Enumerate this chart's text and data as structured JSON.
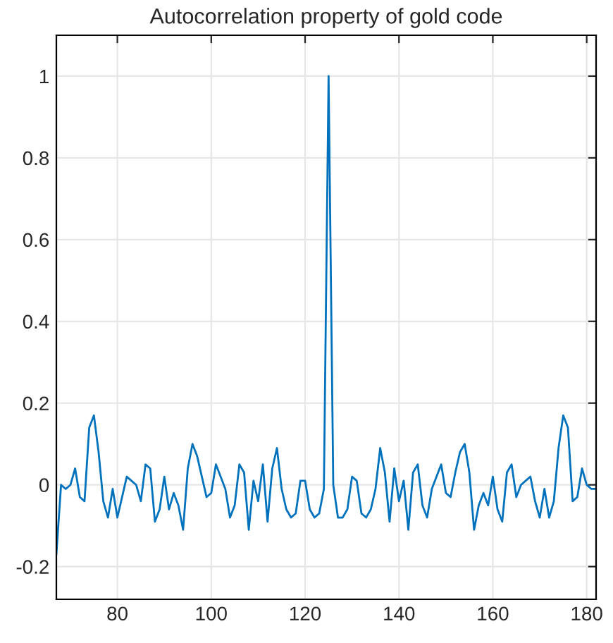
{
  "chart_data": {
    "type": "line",
    "title": "Autocorrelation property of gold code",
    "x": [
      67,
      68,
      69,
      70,
      71,
      72,
      73,
      74,
      75,
      76,
      77,
      78,
      79,
      80,
      81,
      82,
      83,
      84,
      85,
      86,
      87,
      88,
      89,
      90,
      91,
      92,
      93,
      94,
      95,
      96,
      97,
      98,
      99,
      100,
      101,
      102,
      103,
      104,
      105,
      106,
      107,
      108,
      109,
      110,
      111,
      112,
      113,
      114,
      115,
      116,
      117,
      118,
      119,
      120,
      121,
      122,
      123,
      124,
      125,
      126,
      127,
      128,
      129,
      130,
      131,
      132,
      133,
      134,
      135,
      136,
      137,
      138,
      139,
      140,
      141,
      142,
      143,
      144,
      145,
      146,
      147,
      148,
      149,
      150,
      151,
      152,
      153,
      154,
      155,
      156,
      157,
      158,
      159,
      160,
      161,
      162,
      163,
      164,
      165,
      166,
      167,
      168,
      169,
      170,
      171,
      172,
      173,
      174,
      175,
      176,
      177,
      178,
      179,
      180,
      181,
      182
    ],
    "series": [
      {
        "color": "#0072bd",
        "values": [
          -0.17,
          0.0,
          -0.01,
          0.0,
          0.04,
          -0.03,
          -0.04,
          0.14,
          0.17,
          0.08,
          -0.04,
          -0.08,
          -0.01,
          -0.08,
          -0.03,
          0.02,
          0.01,
          0.0,
          -0.04,
          0.05,
          0.04,
          -0.09,
          -0.06,
          0.02,
          -0.06,
          -0.02,
          -0.05,
          -0.11,
          0.04,
          0.1,
          0.07,
          0.02,
          -0.03,
          -0.02,
          0.05,
          0.02,
          -0.01,
          -0.08,
          -0.05,
          0.05,
          0.03,
          -0.11,
          0.01,
          -0.04,
          0.05,
          -0.09,
          0.04,
          0.09,
          -0.01,
          -0.06,
          -0.08,
          -0.07,
          0.01,
          0.01,
          -0.06,
          -0.08,
          -0.07,
          -0.01,
          1.0,
          0.0,
          -0.08,
          -0.08,
          -0.06,
          0.02,
          0.01,
          -0.07,
          -0.08,
          -0.06,
          -0.01,
          0.09,
          0.03,
          -0.09,
          0.04,
          -0.04,
          0.01,
          -0.11,
          0.03,
          0.05,
          -0.05,
          -0.08,
          -0.01,
          0.02,
          0.05,
          -0.02,
          -0.03,
          0.03,
          0.08,
          0.1,
          0.03,
          -0.11,
          -0.05,
          -0.02,
          -0.05,
          0.02,
          -0.06,
          -0.09,
          0.03,
          0.05,
          -0.03,
          0.0,
          0.01,
          0.02,
          -0.04,
          -0.08,
          -0.01,
          -0.08,
          -0.04,
          0.09,
          0.17,
          0.14,
          -0.04,
          -0.03,
          0.04,
          0.0,
          -0.01,
          -0.01
        ]
      }
    ],
    "xlim": [
      67,
      182
    ],
    "ylim": [
      -0.28,
      1.1
    ],
    "xticks": [
      80,
      100,
      120,
      140,
      160,
      180
    ],
    "yticks": [
      {
        "value": -0.2,
        "label": "-0.2"
      },
      0,
      0.2,
      0.4,
      0.6,
      0.8,
      1
    ],
    "grid": true,
    "line_style": "solid",
    "marker": "none"
  }
}
